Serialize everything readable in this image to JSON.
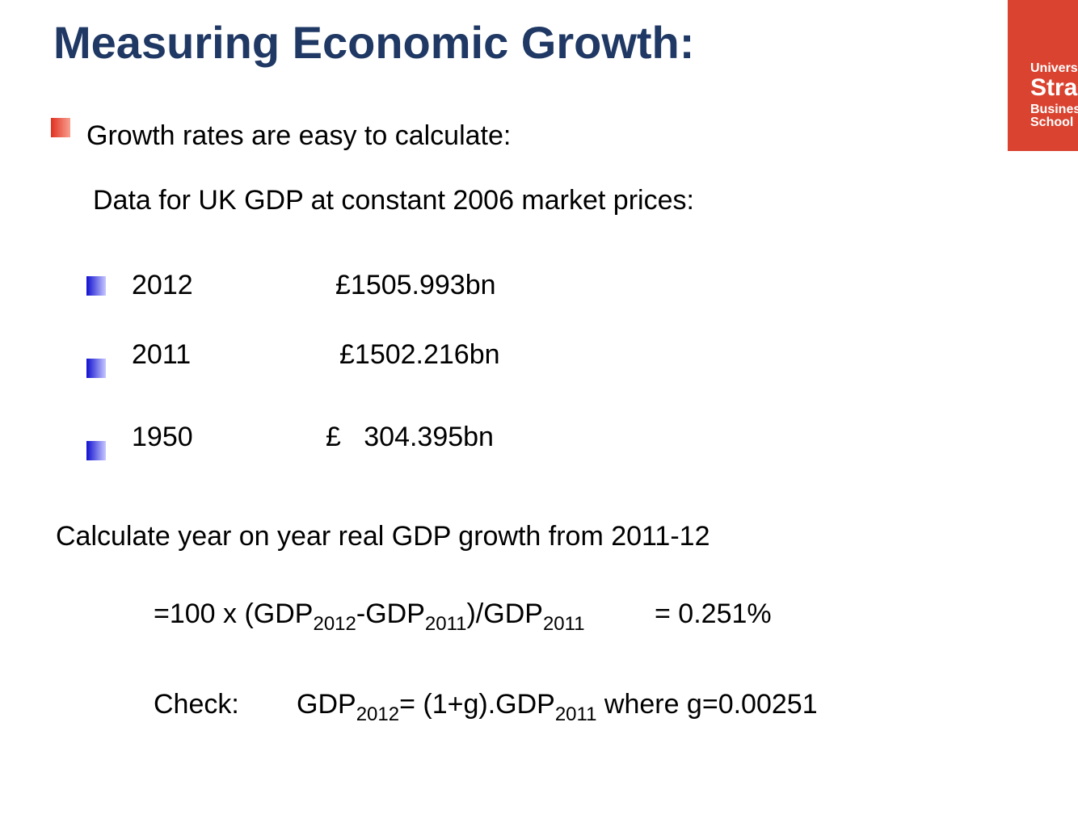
{
  "header": {
    "title": "Measuring Economic Growth:"
  },
  "logo": {
    "lines": [
      "Universi",
      "Stra",
      "Busines",
      "School"
    ]
  },
  "bullet": "Growth rates are easy to calculate:",
  "data_heading": "Data for UK GDP at constant 2006 market prices:",
  "table": {
    "rows": [
      [
        "2012",
        "£1505.993bn"
      ],
      [
        "2011",
        "£1502.216bn"
      ],
      [
        "1950",
        "£   304.395bn"
      ]
    ]
  },
  "question": "Calculate year on year real GDP growth from 2011-12",
  "formula": {
    "parts": [
      "=100 x (GDP",
      "2012",
      "-GDP",
      "2011",
      ")/GDP",
      "2011"
    ],
    "result": "= 0.251%"
  },
  "check": {
    "label": "Check:",
    "parts": [
      "GDP",
      "2012",
      "= (1+g).GDP",
      "2011",
      " where g=0.00251"
    ]
  }
}
